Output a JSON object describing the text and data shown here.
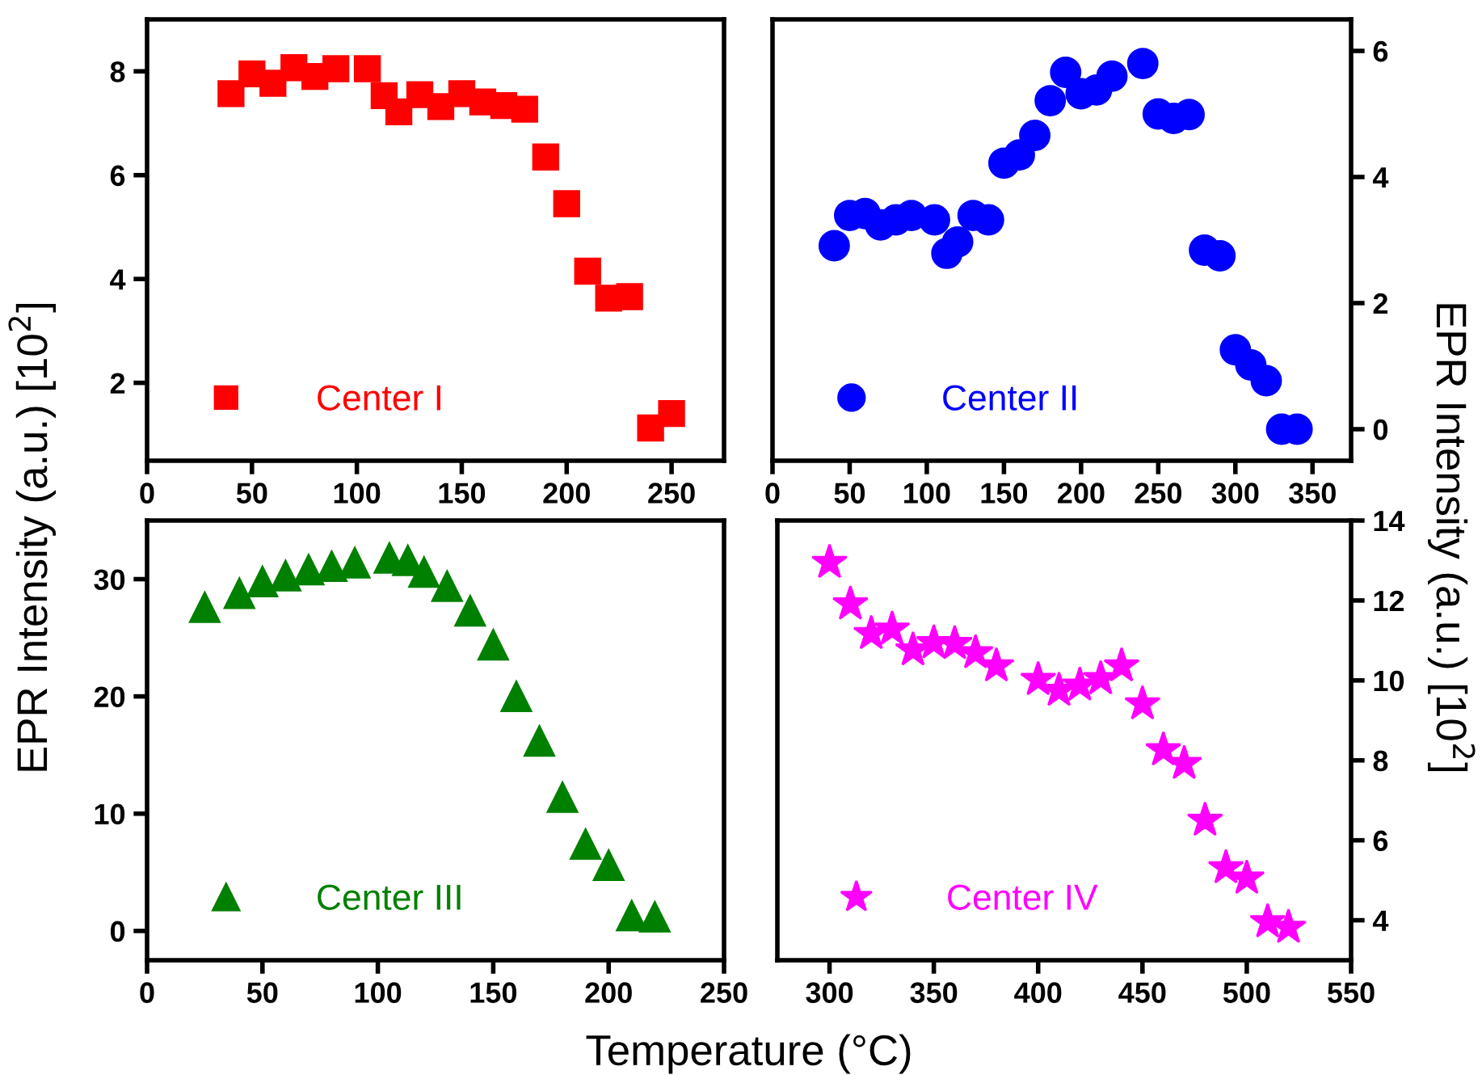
{
  "chart_data": [
    {
      "type": "scatter",
      "ylabel": "EPR Intensity (a.u.) [10$^{2}$]",
      "marker": "square",
      "legend": "bottom left",
      "grid": false,
      "xlim": [
        0,
        275
      ],
      "xticks": [
        0,
        50,
        100,
        150,
        200,
        250
      ],
      "ylim": [
        0.5,
        9
      ],
      "yticks": [
        2,
        4,
        6,
        8
      ],
      "series": [
        {
          "name": "Center I",
          "color": "#ff0000",
          "x": [
            40,
            50,
            60,
            70,
            80,
            90,
            105,
            113,
            120,
            130,
            140,
            150,
            160,
            170,
            180,
            190,
            200,
            210,
            220,
            230,
            240,
            250
          ],
          "values": [
            7.57,
            7.95,
            7.77,
            8.07,
            7.9,
            8.05,
            8.05,
            7.53,
            7.22,
            7.55,
            7.32,
            7.57,
            7.41,
            7.34,
            7.27,
            6.35,
            5.45,
            4.15,
            3.63,
            3.66,
            1.13,
            1.41
          ]
        }
      ]
    },
    {
      "type": "scatter",
      "y2label": "EPR Intensity (a.u.) [10$^{2}$]",
      "marker": "circle",
      "legend": "bottom left",
      "grid": false,
      "xlim": [
        0,
        375
      ],
      "xticks": [
        0,
        50,
        100,
        150,
        200,
        250,
        300,
        350
      ],
      "y2lim": [
        -0.5,
        6.5
      ],
      "y2ticks": [
        0,
        2,
        4,
        6
      ],
      "series": [
        {
          "name": "Center II",
          "color": "#0000ff",
          "axis": "y2",
          "x": [
            40,
            50,
            60,
            70,
            80,
            90,
            105,
            113,
            120,
            130,
            140,
            150,
            160,
            170,
            180,
            190,
            200,
            210,
            220,
            240,
            250,
            260,
            270,
            280,
            290,
            300,
            310,
            320,
            330,
            340
          ],
          "values": [
            2.91,
            3.39,
            3.42,
            3.24,
            3.32,
            3.39,
            3.32,
            2.79,
            2.97,
            3.39,
            3.32,
            4.22,
            4.35,
            4.66,
            5.21,
            5.66,
            5.32,
            5.38,
            5.6,
            5.8,
            5.0,
            4.93,
            4.99,
            2.84,
            2.75,
            1.26,
            1.02,
            0.77,
            0,
            0
          ]
        }
      ]
    },
    {
      "type": "scatter",
      "xlabel": "Temperature (°C)",
      "marker": "triangle",
      "legend": "bottom left",
      "grid": false,
      "xlim": [
        0,
        250
      ],
      "xticks": [
        0,
        50,
        100,
        150,
        200,
        250
      ],
      "ylim": [
        -2.5,
        35
      ],
      "yticks": [
        0,
        10,
        20,
        30
      ],
      "series": [
        {
          "name": "Center III",
          "color": "#008000",
          "x": [
            25,
            40,
            50,
            60,
            70,
            80,
            90,
            105,
            113,
            120,
            130,
            140,
            150,
            160,
            170,
            180,
            190,
            200,
            210,
            220
          ],
          "values": [
            27.6,
            28.8,
            29.8,
            30.3,
            30.8,
            31.1,
            31.4,
            31.8,
            31.6,
            30.6,
            29.4,
            27.3,
            24.4,
            20.0,
            16.2,
            11.4,
            7.4,
            5.6,
            1.3,
            1.2
          ]
        }
      ]
    },
    {
      "type": "scatter",
      "marker": "star",
      "legend": "bottom left",
      "grid": false,
      "xlim": [
        275,
        550
      ],
      "xticks": [
        300,
        350,
        400,
        450,
        500,
        550
      ],
      "y2lim": [
        3,
        14
      ],
      "y2ticks": [
        4,
        6,
        8,
        10,
        12,
        14
      ],
      "series": [
        {
          "name": "Center IV",
          "color": "#ff00ff",
          "axis": "y2",
          "x": [
            300,
            310,
            320,
            330,
            340,
            350,
            360,
            370,
            380,
            400,
            410,
            420,
            430,
            440,
            450,
            460,
            470,
            480,
            490,
            500,
            510,
            520
          ],
          "values": [
            12.95,
            11.91,
            11.17,
            11.28,
            10.76,
            10.94,
            10.92,
            10.69,
            10.36,
            10.02,
            9.75,
            9.88,
            10.04,
            10.36,
            9.41,
            8.26,
            7.92,
            6.5,
            5.31,
            5.05,
            3.96,
            3.82
          ]
        }
      ]
    }
  ]
}
